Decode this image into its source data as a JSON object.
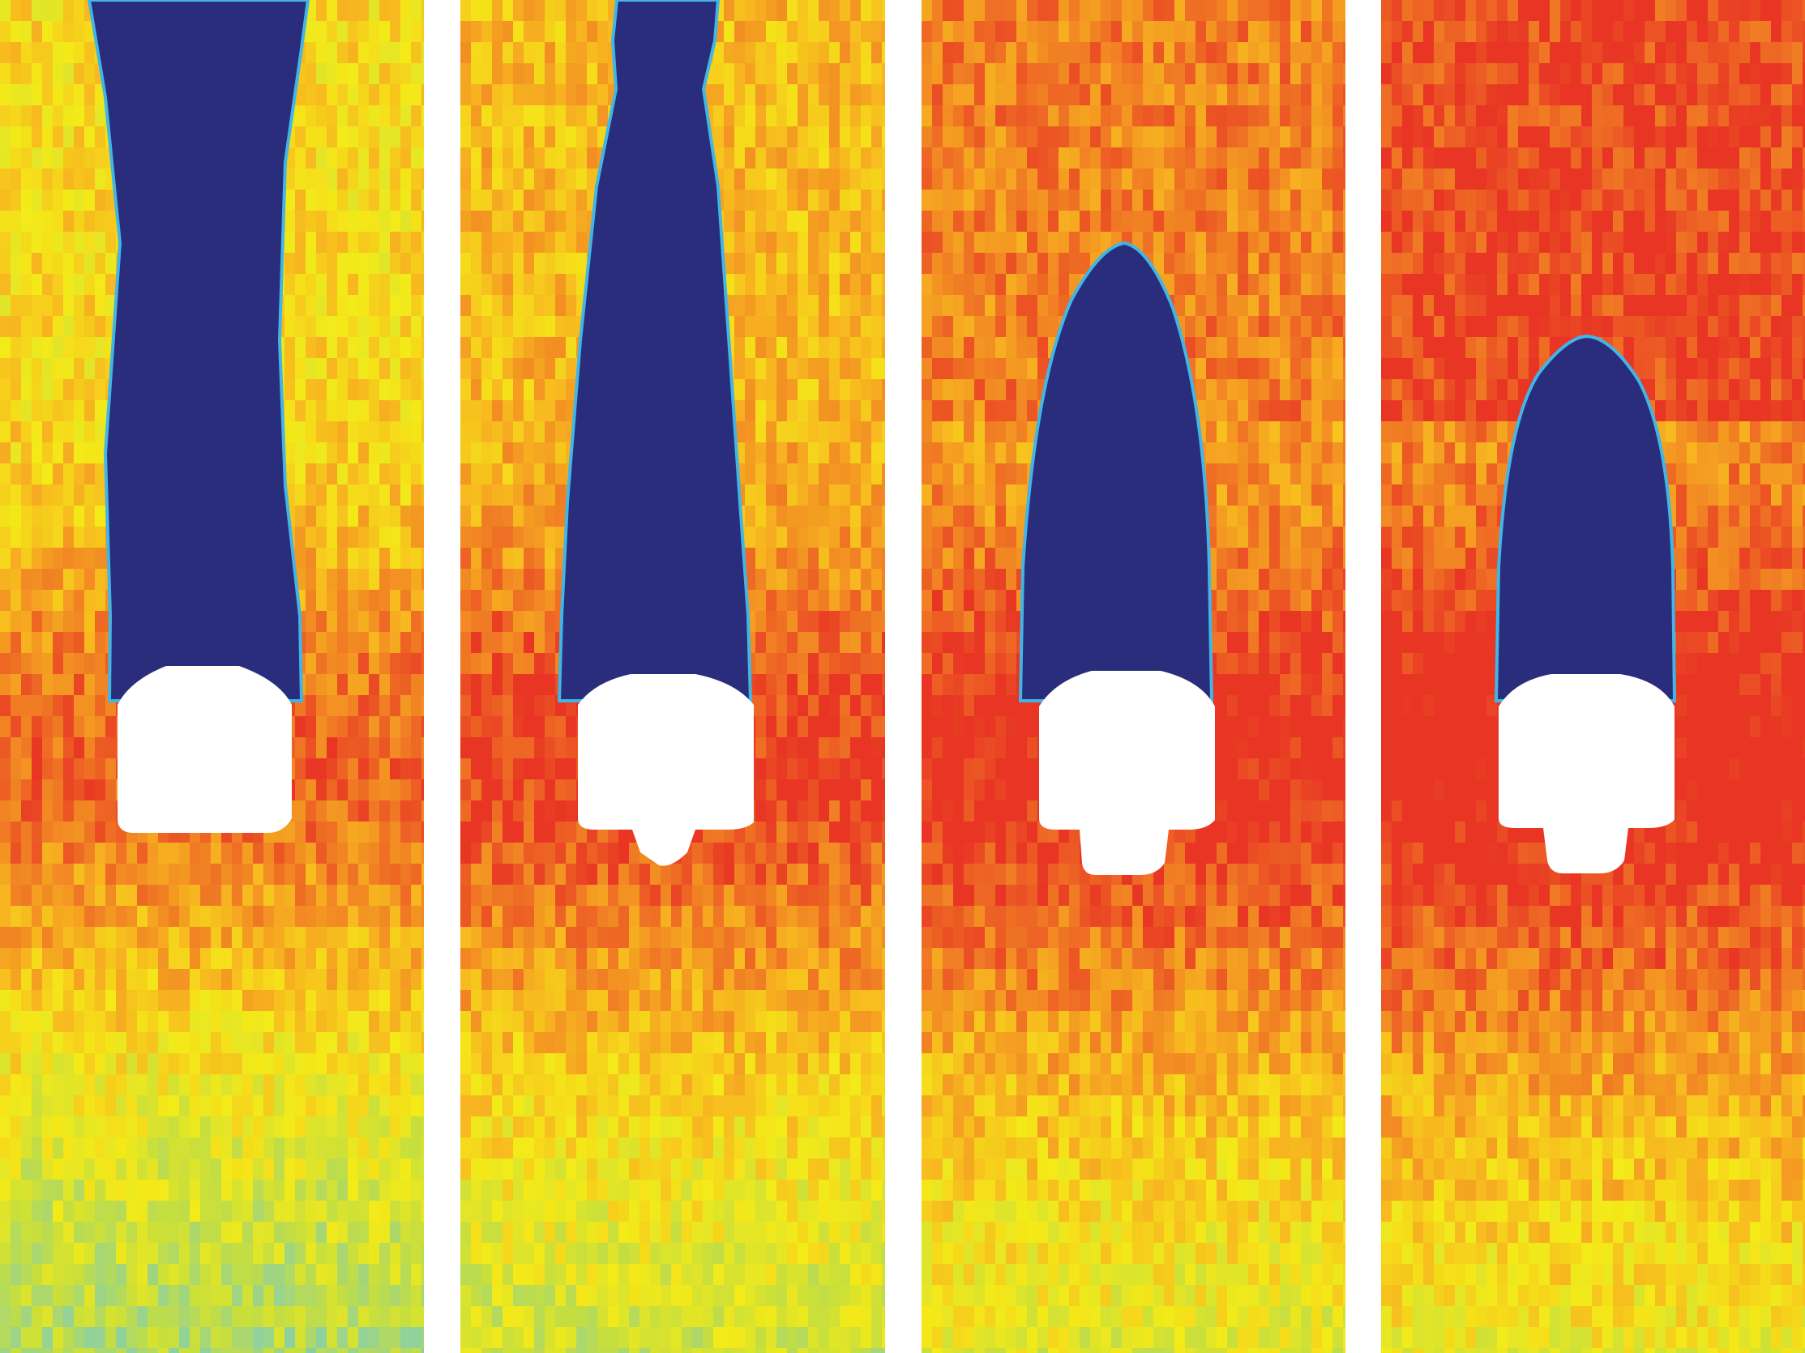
{
  "figure": {
    "panel_count": 4,
    "background_color": "#ffffff",
    "colormap": [
      "#2a2d7c",
      "#41b6e6",
      "#8fd19e",
      "#c6de3e",
      "#f4ea18",
      "#f7b81f",
      "#f07a24",
      "#e83524"
    ],
    "cavity_color": "#2a2d7c",
    "body_color": "#ffffff",
    "panels": [
      {
        "name": "panel-1",
        "cavity": "open-long",
        "tail": false,
        "base_intensity": 0.62
      },
      {
        "name": "panel-2",
        "cavity": "open-narrowing",
        "tail": true,
        "base_intensity": 0.7
      },
      {
        "name": "panel-3",
        "cavity": "closed-medium",
        "tail": true,
        "base_intensity": 0.76
      },
      {
        "name": "panel-4",
        "cavity": "closed-short",
        "tail": true,
        "base_intensity": 0.8
      }
    ]
  }
}
